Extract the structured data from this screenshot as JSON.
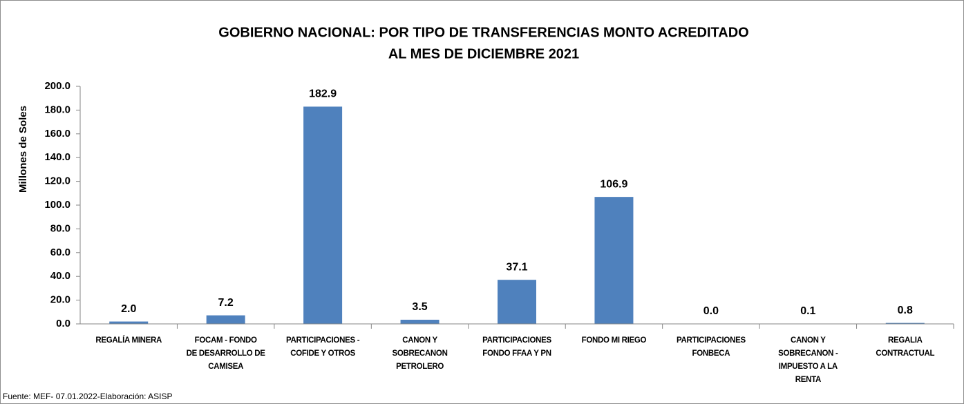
{
  "chart_data": {
    "type": "bar",
    "title": [
      "GOBIERNO NACIONAL: POR TIPO DE TRANSFERENCIAS MONTO ACREDITADO",
      "AL MES DE DICIEMBRE 2021"
    ],
    "y_label": "Millones de Soles",
    "categories": [
      [
        "REGALÍA MINERA"
      ],
      [
        "FOCAM - FONDO",
        "DE DESARROLLO DE",
        "CAMISEA"
      ],
      [
        "PARTICIPACIONES -",
        "COFIDE Y OTROS"
      ],
      [
        "CANON Y",
        "SOBRECANON",
        "PETROLERO"
      ],
      [
        "PARTICIPACIONES",
        "FONDO FFAA Y PN"
      ],
      [
        "FONDO MI RIEGO"
      ],
      [
        "PARTICIPACIONES",
        "FONBECA"
      ],
      [
        "CANON Y",
        "SOBRECANON -",
        "IMPUESTO A LA",
        "RENTA"
      ],
      [
        "REGALIA",
        "CONTRACTUAL"
      ]
    ],
    "values": [
      2.0,
      7.2,
      182.9,
      3.5,
      37.1,
      106.9,
      0.0,
      0.1,
      0.8
    ],
    "value_labels": [
      "2.0",
      "7.2",
      "182.9",
      "3.5",
      "37.1",
      "106.9",
      "0.0",
      "0.1",
      "0.8"
    ],
    "color": "#4f81bd",
    "ylim": [
      0,
      200
    ],
    "yticks": [
      {
        "value": 0,
        "label": "0.0"
      },
      {
        "value": 20,
        "label": "20.0"
      },
      {
        "value": 40,
        "label": "40.0"
      },
      {
        "value": 60,
        "label": "60.0"
      },
      {
        "value": 80,
        "label": "80.0"
      },
      {
        "value": 100,
        "label": "100.0"
      },
      {
        "value": 120,
        "label": "120.0"
      },
      {
        "value": 140,
        "label": "140.0"
      },
      {
        "value": 160,
        "label": "160.0"
      },
      {
        "value": 180,
        "label": "180.0"
      },
      {
        "value": 200,
        "label": "200.0"
      }
    ],
    "grid": false,
    "source": "Fuente: MEF- 07.01.2022-Elaboración: ASISP"
  }
}
